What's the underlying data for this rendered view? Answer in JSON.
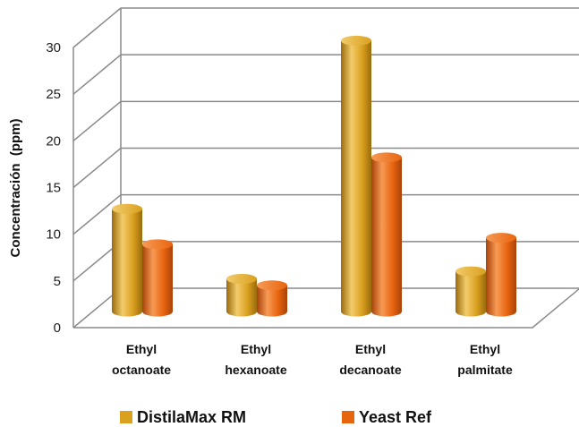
{
  "chart_data": {
    "type": "bar",
    "categories": [
      "Ethyl octanoate",
      "Ethyl hexanoate",
      "Ethyl decanoate",
      "Ethyl palmitate"
    ],
    "category_lines": [
      [
        "Ethyl",
        "octanoate"
      ],
      [
        "Ethyl",
        "hexanoate"
      ],
      [
        "Ethyl",
        "decanoate"
      ],
      [
        "Ethyl",
        "palmitate"
      ]
    ],
    "series": [
      {
        "name": "DistilaMax RM",
        "values": [
          11.0,
          3.5,
          29.0,
          4.3
        ],
        "color": "#DAA01F"
      },
      {
        "name": "Yeast Ref",
        "values": [
          7.2,
          2.8,
          16.5,
          7.9
        ],
        "color": "#E8650F"
      }
    ],
    "ylabel": "Concentración  (ppm)",
    "xlabel": "",
    "title": "",
    "ylim": [
      0,
      30
    ],
    "yticks": [
      0,
      5,
      10,
      15,
      20,
      25,
      30
    ],
    "grid": true,
    "legend_position": "bottom",
    "style": "3d-cylinder"
  }
}
